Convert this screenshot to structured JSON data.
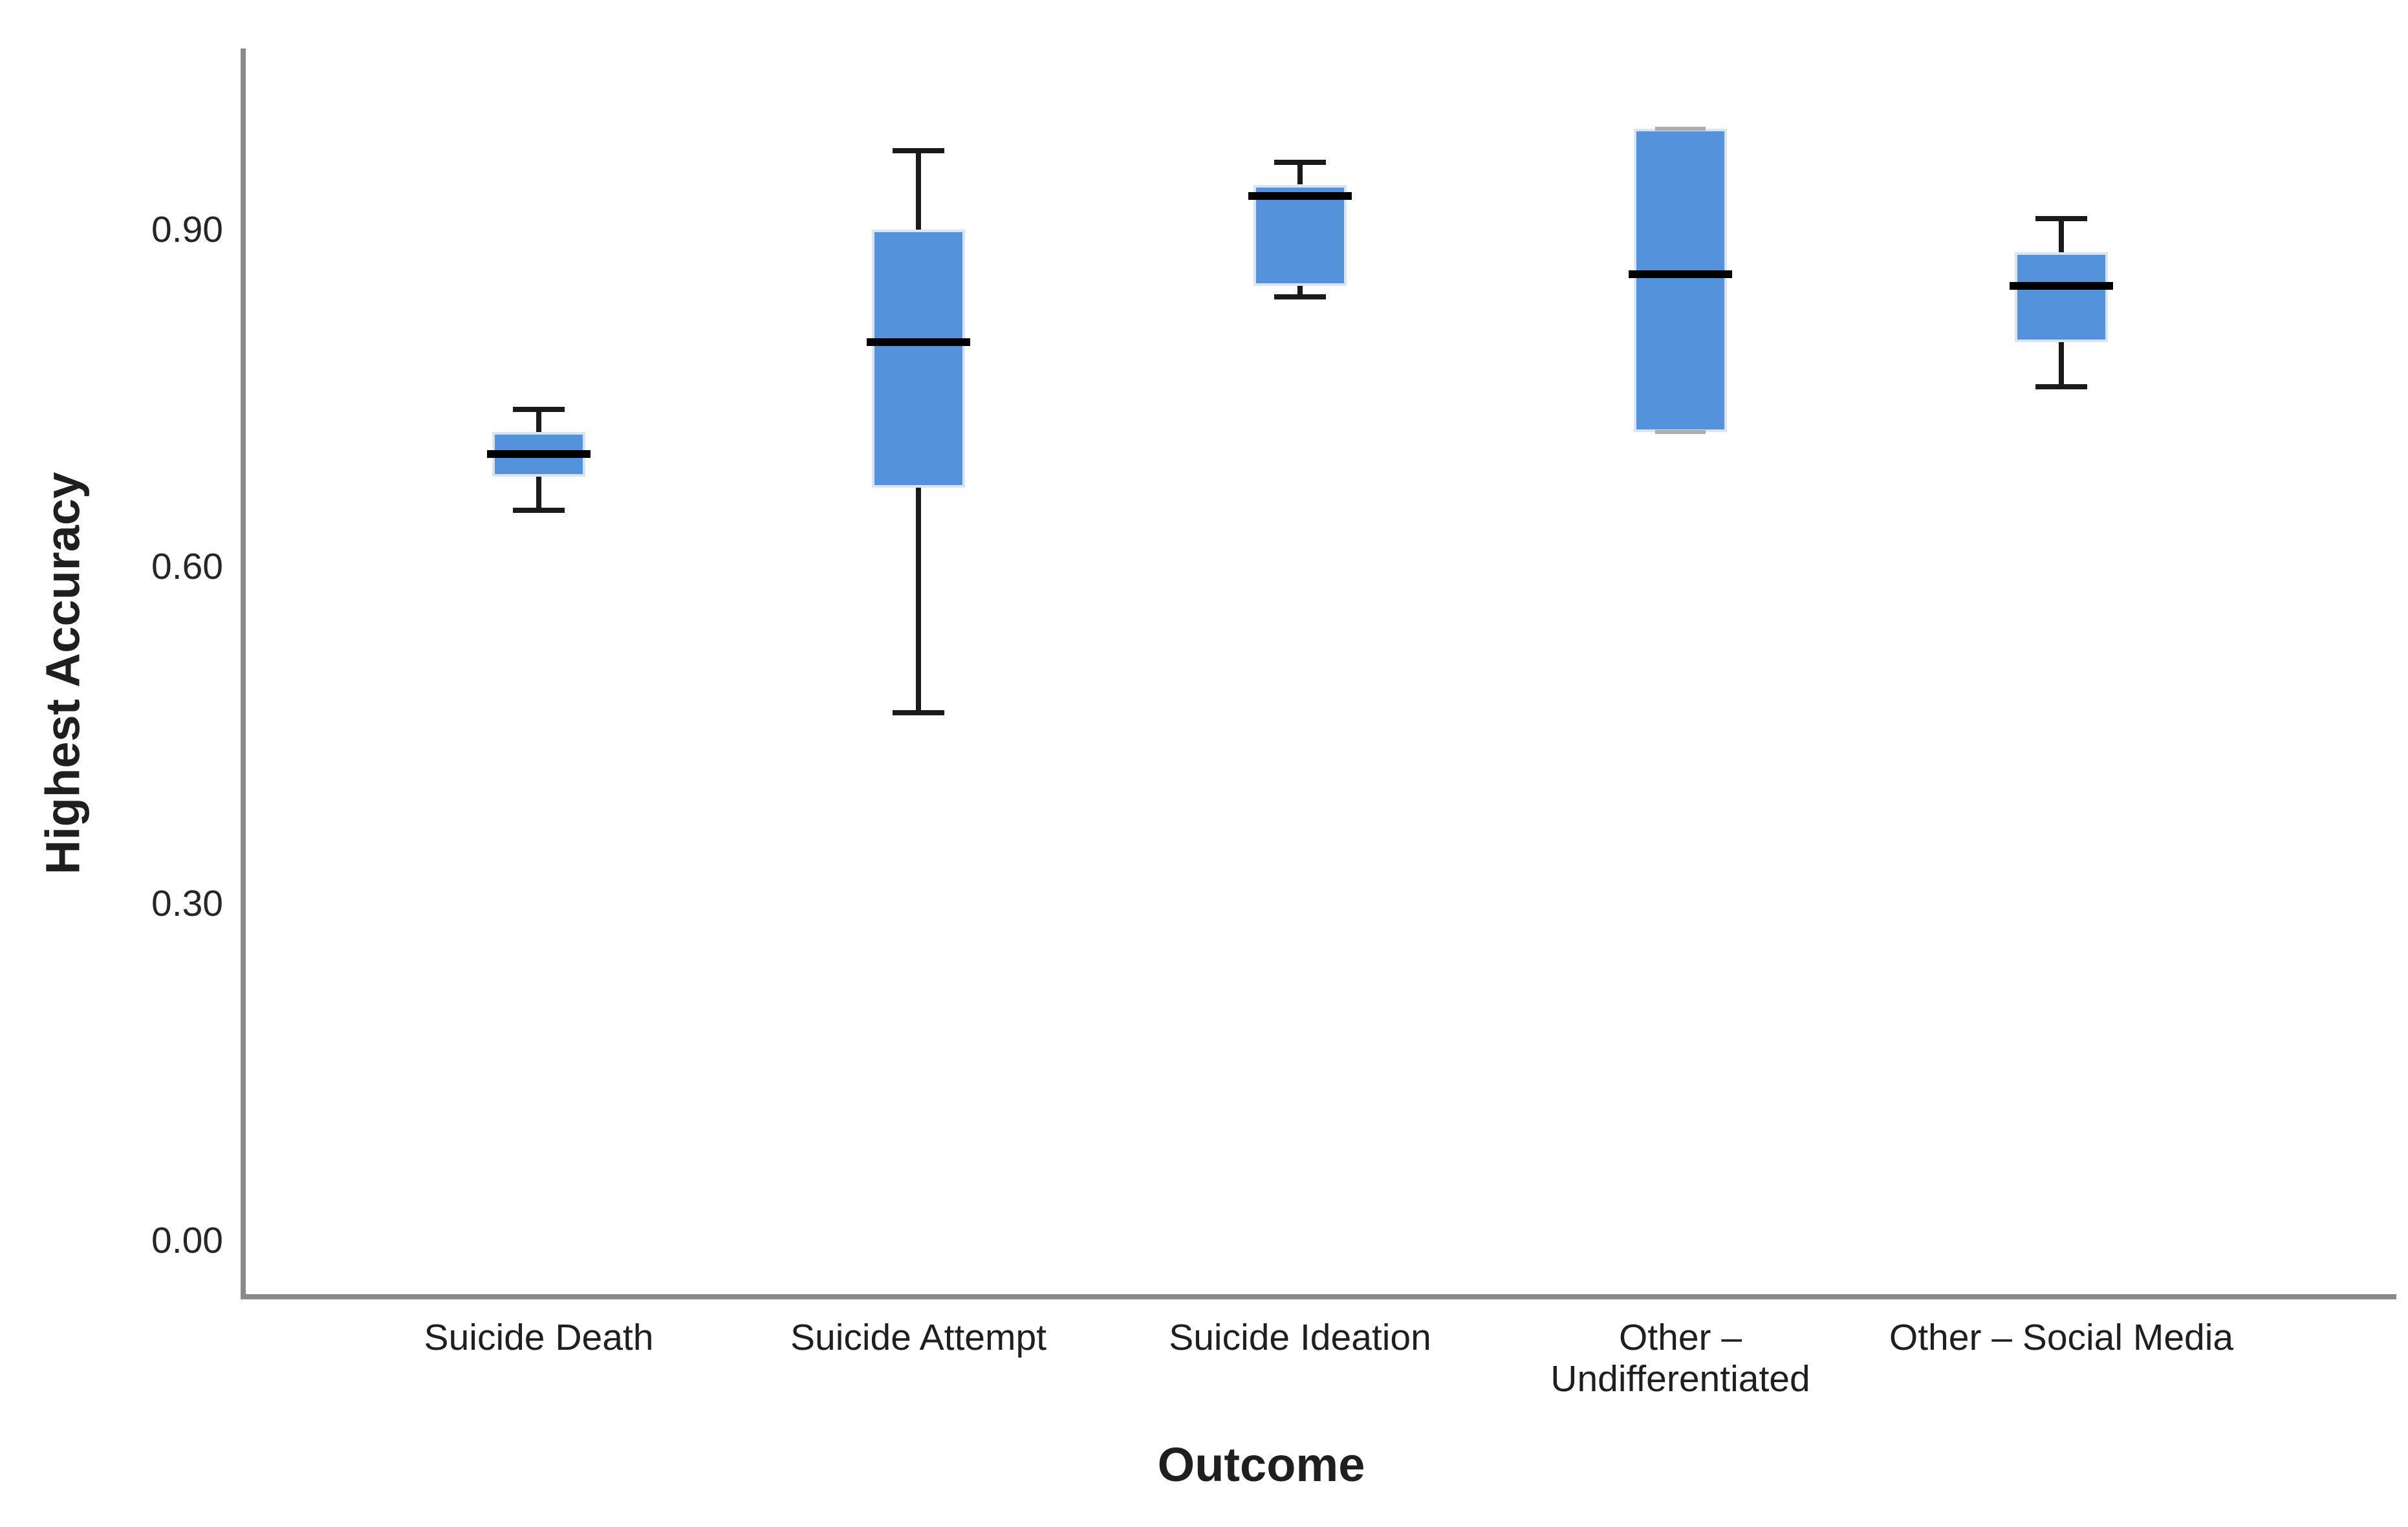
{
  "chart_data": {
    "type": "boxplot",
    "title": "",
    "xlabel": "Outcome",
    "ylabel": "Highest Accuracy",
    "ylim": [
      0.0,
      1.06
    ],
    "grid": false,
    "legend": null,
    "yticks": [
      {
        "value": 0.9,
        "label": "0.90"
      },
      {
        "value": 0.6,
        "label": "0.60"
      },
      {
        "value": 0.3,
        "label": "0.30"
      },
      {
        "value": 0.0,
        "label": "0.00"
      }
    ],
    "categories": [
      "Suicide Death",
      "Suicide Attempt",
      "Suicide Ideation",
      "Other – Undifferentiated",
      "Other – Social Media"
    ],
    "series": [
      {
        "category": "Suicide Death",
        "label_lines": [
          "Suicide Death"
        ],
        "whisker_low": 0.65,
        "q1": 0.68,
        "median": 0.7,
        "q3": 0.72,
        "whisker_high": 0.74
      },
      {
        "category": "Suicide Attempt",
        "label_lines": [
          "Suicide Attempt"
        ],
        "whisker_low": 0.47,
        "q1": 0.67,
        "median": 0.8,
        "q3": 0.9,
        "whisker_high": 0.97
      },
      {
        "category": "Suicide Ideation",
        "label_lines": [
          "Suicide Ideation"
        ],
        "whisker_low": 0.84,
        "q1": 0.85,
        "median": 0.93,
        "q3": 0.94,
        "whisker_high": 0.96
      },
      {
        "category": "Other – Undifferentiated",
        "label_lines": [
          "Other –",
          "Undifferentiated"
        ],
        "whisker_low": 0.72,
        "q1": 0.72,
        "median": 0.86,
        "q3": 0.99,
        "whisker_high": 0.99
      },
      {
        "category": "Other – Social Media",
        "label_lines": [
          "Other – Social Media"
        ],
        "whisker_low": 0.76,
        "q1": 0.8,
        "median": 0.85,
        "q3": 0.88,
        "whisker_high": 0.91
      }
    ],
    "colors": {
      "box_fill": "#5592dc",
      "box_border": "#d9e4f6",
      "median": "#000000",
      "whisker": "#1a1a1a",
      "axis": "#8a8a8a",
      "text": "#1f1f1f",
      "coincident_cap": "#acacac"
    }
  }
}
